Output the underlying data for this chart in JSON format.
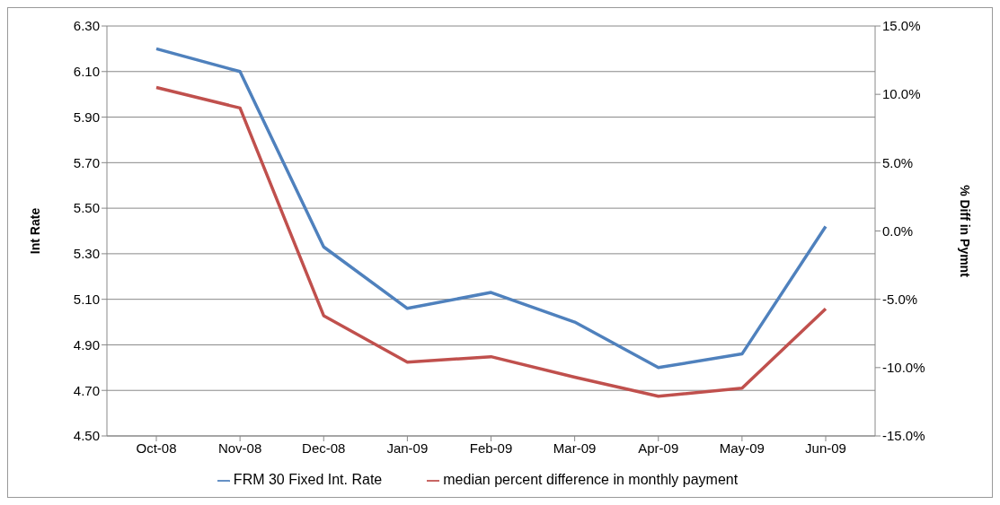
{
  "chart_data": {
    "type": "line",
    "categories": [
      "Oct-08",
      "Nov-08",
      "Dec-08",
      "Jan-09",
      "Feb-09",
      "Mar-09",
      "Apr-09",
      "May-09",
      "Jun-09"
    ],
    "series": [
      {
        "name": "FRM 30 Fixed Int. Rate",
        "color": "#4f81bd",
        "values": [
          6.2,
          6.1,
          5.33,
          5.06,
          5.13,
          5.0,
          4.8,
          4.86,
          5.42
        ]
      },
      {
        "name": "median percent difference in monthly  payment",
        "color": "#c0504d",
        "axis": "y2",
        "values": [
          10.5,
          9.0,
          -6.2,
          -9.6,
          -9.2,
          -10.7,
          -12.1,
          -11.5,
          -5.7
        ]
      }
    ],
    "ylabel": "Int Rate",
    "y2label": "% Diff in Pymnt",
    "ylim": [
      4.5,
      6.3
    ],
    "yticks": [
      {
        "value": 4.5,
        "label": "4.50"
      },
      {
        "value": 4.7,
        "label": "4.70"
      },
      {
        "value": 4.9,
        "label": "4.90"
      },
      {
        "value": 5.1,
        "label": "5.10"
      },
      {
        "value": 5.3,
        "label": "5.30"
      },
      {
        "value": 5.5,
        "label": "5.50"
      },
      {
        "value": 5.7,
        "label": "5.70"
      },
      {
        "value": 5.9,
        "label": "5.90"
      },
      {
        "value": 6.1,
        "label": "6.10"
      },
      {
        "value": 6.3,
        "label": "6.30"
      }
    ],
    "y2lim": [
      -15,
      15
    ],
    "y2ticks": [
      {
        "value": -15,
        "label": "-15.0%"
      },
      {
        "value": -10,
        "label": "-10.0%"
      },
      {
        "value": -5,
        "label": "-5.0%"
      },
      {
        "value": 0,
        "label": "0.0%"
      },
      {
        "value": 5,
        "label": "5.0%"
      },
      {
        "value": 10,
        "label": "10.0%"
      },
      {
        "value": 15,
        "label": "15.0%"
      }
    ],
    "grid": "y",
    "legend": "bottom",
    "marker": "none",
    "line_style": "solid"
  }
}
